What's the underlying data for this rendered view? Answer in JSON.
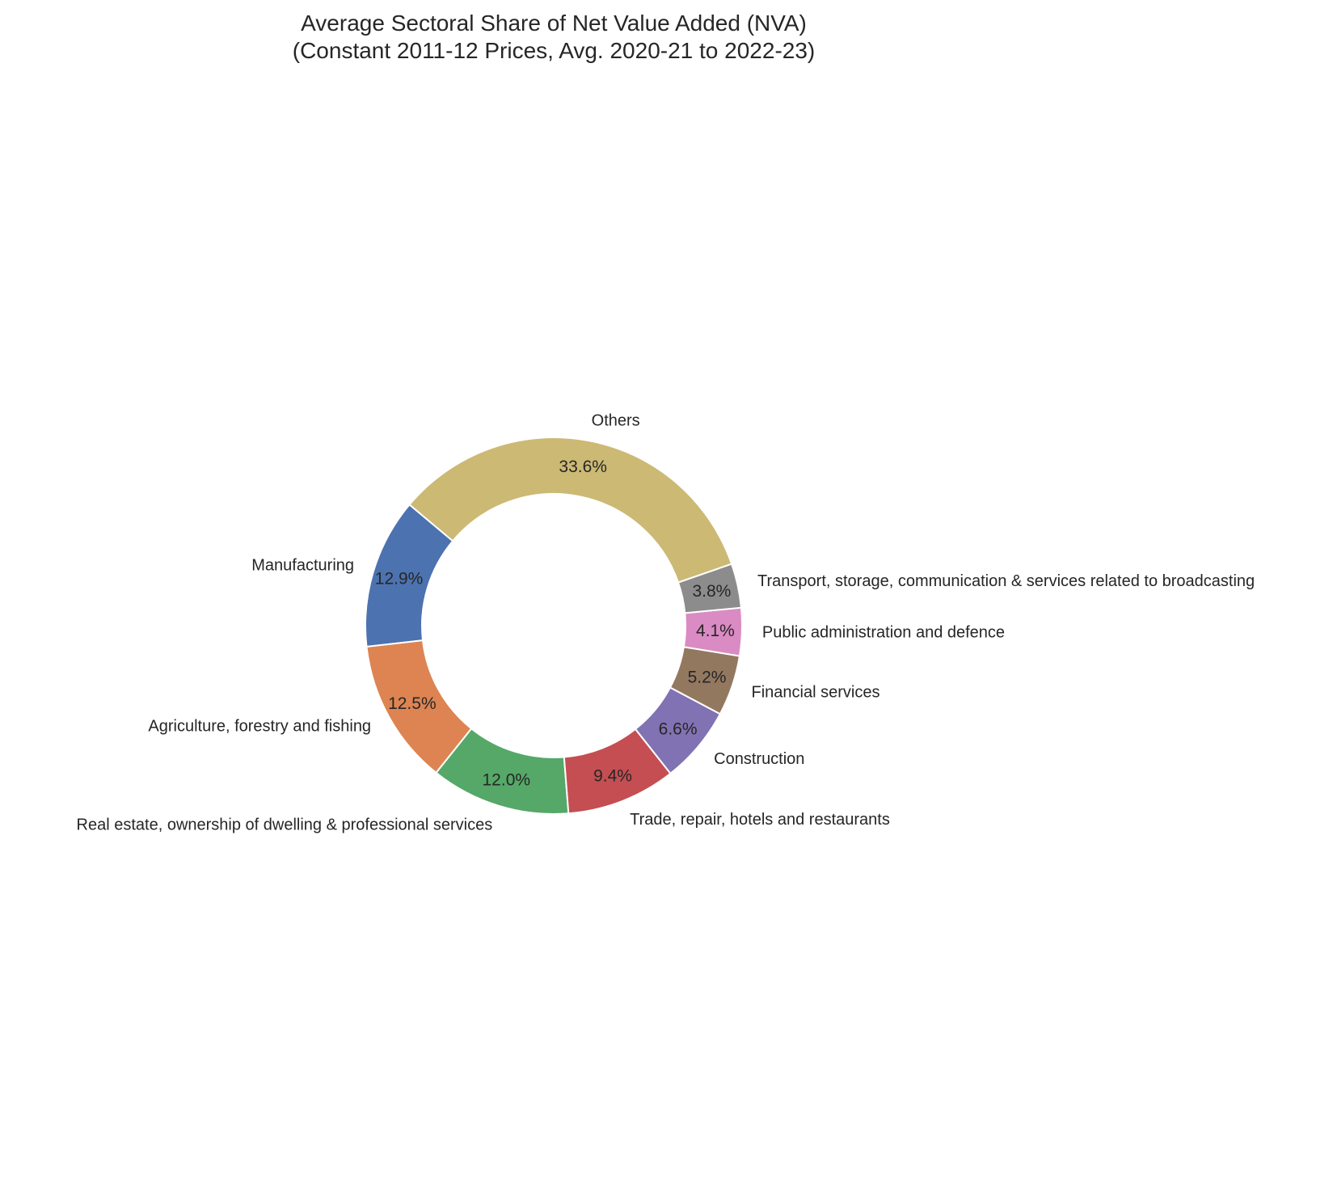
{
  "chart_data": {
    "type": "pie",
    "style": "donut",
    "title": "Average Sectoral Share of Net Value Added (NVA)",
    "subtitle": "(Constant 2011-12 Prices, Avg. 2020-21 to 2022-23)",
    "start_angle_deg": 140,
    "direction": "counterclockwise",
    "slices": [
      {
        "label": "Manufacturing",
        "value": 12.9,
        "pct_label": "12.9%",
        "color": "#4c72b0"
      },
      {
        "label": "Agriculture, forestry and fishing",
        "value": 12.5,
        "pct_label": "12.5%",
        "color": "#dd8452"
      },
      {
        "label": "Real estate, ownership of dwelling & professional services",
        "value": 12.0,
        "pct_label": "12.0%",
        "color": "#55a868"
      },
      {
        "label": "Trade, repair, hotels and restaurants",
        "value": 9.4,
        "pct_label": "9.4%",
        "color": "#c44e52"
      },
      {
        "label": "Construction",
        "value": 6.6,
        "pct_label": "6.6%",
        "color": "#8172b3"
      },
      {
        "label": "Financial services",
        "value": 5.2,
        "pct_label": "5.2%",
        "color": "#937860"
      },
      {
        "label": "Public administration and defence",
        "value": 4.1,
        "pct_label": "4.1%",
        "color": "#da8bc3"
      },
      {
        "label": "Transport, storage, communication & services related to broadcasting",
        "value": 3.8,
        "pct_label": "3.8%",
        "color": "#8c8c8c"
      },
      {
        "label": "Others",
        "value": 33.6,
        "pct_label": "33.6%",
        "color": "#ccb974"
      }
    ]
  }
}
